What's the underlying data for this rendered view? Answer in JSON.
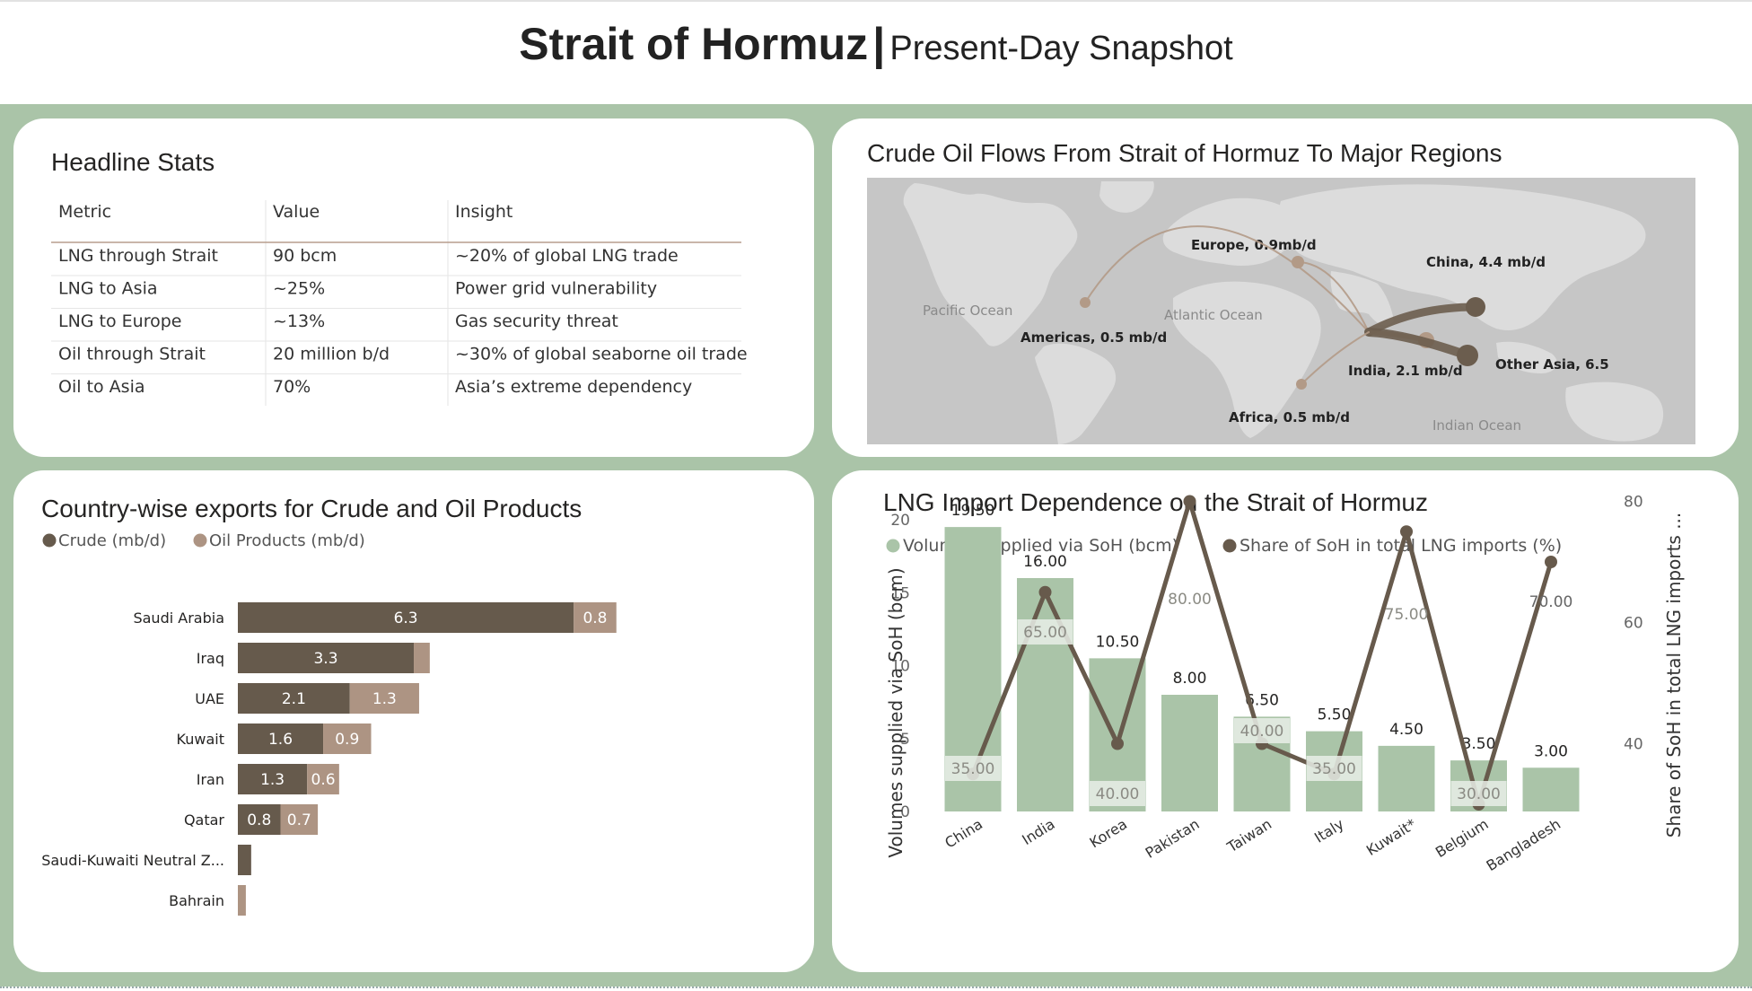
{
  "header": {
    "title": "Strait of Hormuz",
    "separator": "|",
    "subtitle": "Present-Day Snapshot"
  },
  "stats": {
    "title": "Headline Stats",
    "columns": [
      "Metric",
      "Value",
      "Insight"
    ],
    "rows": [
      [
        "LNG through Strait",
        "90 bcm",
        "~20% of global LNG trade"
      ],
      [
        "LNG to Asia",
        "~25%",
        "Power grid vulnerability"
      ],
      [
        "LNG to Europe",
        "~13%",
        "Gas security threat"
      ],
      [
        "Oil through Strait",
        "20 million b/d",
        "~30% of global seaborne oil trade"
      ],
      [
        "Oil to Asia",
        "70%",
        "Asia’s extreme dependency"
      ]
    ]
  },
  "map": {
    "title": "Crude Oil Flows From Strait of Hormuz To Major Regions",
    "oceans": [
      "Pacific Ocean",
      "Atlantic Ocean",
      "Indian Ocean"
    ],
    "flows": [
      {
        "label": "Europe, 0.9mb/d",
        "region": "Europe",
        "value": 0.9
      },
      {
        "label": "China, 4.4 mb/d",
        "region": "China",
        "value": 4.4
      },
      {
        "label": "Americas, 0.5 mb/d",
        "region": "Americas",
        "value": 0.5
      },
      {
        "label": "India, 2.1 mb/d",
        "region": "India",
        "value": 2.1
      },
      {
        "label": "Other Asia, 6.5",
        "region": "Other Asia",
        "value": 6.5
      },
      {
        "label": "Africa, 0.5 mb/d",
        "region": "Africa",
        "value": 0.5
      }
    ],
    "colors": {
      "land": "#dcdcdc",
      "water": "#c6c6c6",
      "flow": "#6b5d4e",
      "flow_light": "#b29a87"
    }
  },
  "chart_data": [
    {
      "type": "bar",
      "orientation": "horizontal",
      "stacked": true,
      "title": "Country-wise exports for Crude and Oil Products",
      "categories": [
        "Saudi Arabia",
        "Iraq",
        "UAE",
        "Kuwait",
        "Iran",
        "Qatar",
        "Saudi-Kuwaiti Neutral Z...",
        "Bahrain"
      ],
      "series": [
        {
          "name": "Crude (mb/d)",
          "color": "#665a4c",
          "values": [
            6.3,
            3.3,
            2.1,
            1.6,
            1.3,
            0.8,
            0.25,
            0
          ],
          "labels": [
            "6.3",
            "3.3",
            "2.1",
            "1.6",
            "1.3",
            "0.8",
            "",
            ""
          ]
        },
        {
          "name": "Oil Products (mb/d)",
          "color": "#ad9483",
          "values": [
            0.8,
            0.3,
            1.3,
            0.9,
            0.6,
            0.7,
            0,
            0.15
          ],
          "labels": [
            "0.8",
            "",
            "1.3",
            "0.9",
            "0.6",
            "0.7",
            "",
            ""
          ]
        }
      ],
      "legend": "top-left",
      "xlim": [
        0,
        7.5
      ]
    },
    {
      "type": "bar",
      "combo": "bar-line",
      "title": "LNG Import Dependence on the Strait of Hormuz",
      "categories": [
        "China",
        "India",
        "Korea",
        "Pakistan",
        "Taiwan",
        "Italy",
        "Kuwait*",
        "Belgium",
        "Bangladesh"
      ],
      "series": [
        {
          "name": "Volumes supplied via SoH (bcm)",
          "type": "bar",
          "axis": "left",
          "color": "#aac4a8",
          "values": [
            19.5,
            16,
            10.5,
            8,
            6.5,
            5.5,
            4.5,
            3.5,
            3
          ],
          "labels": [
            "19.50",
            "16.00",
            "10.50",
            "8.00",
            "6.50",
            "5.50",
            "4.50",
            "3.50",
            "3.00"
          ]
        },
        {
          "name": "Share of SoH in total LNG imports (%)",
          "type": "line",
          "axis": "right",
          "color": "#675a4c",
          "values": [
            35,
            65,
            40,
            80,
            40,
            35,
            75,
            30,
            70
          ],
          "labels": [
            "35.00",
            "65.00",
            "40.00",
            "80.00",
            "40.00",
            "35.00",
            "75.00",
            "30.00",
            "70.00"
          ]
        }
      ],
      "ylabel": "Volumes supplied via SoH (bcm)",
      "ylabel_right": "Share of SoH in total LNG imports ...",
      "ylim": [
        0,
        20
      ],
      "yticks": [
        "0",
        "5",
        "10",
        "15",
        "20"
      ],
      "ylim_right": [
        30,
        80
      ],
      "yticks_right": [
        "40",
        "60",
        "80"
      ],
      "legend": "top-left"
    }
  ]
}
